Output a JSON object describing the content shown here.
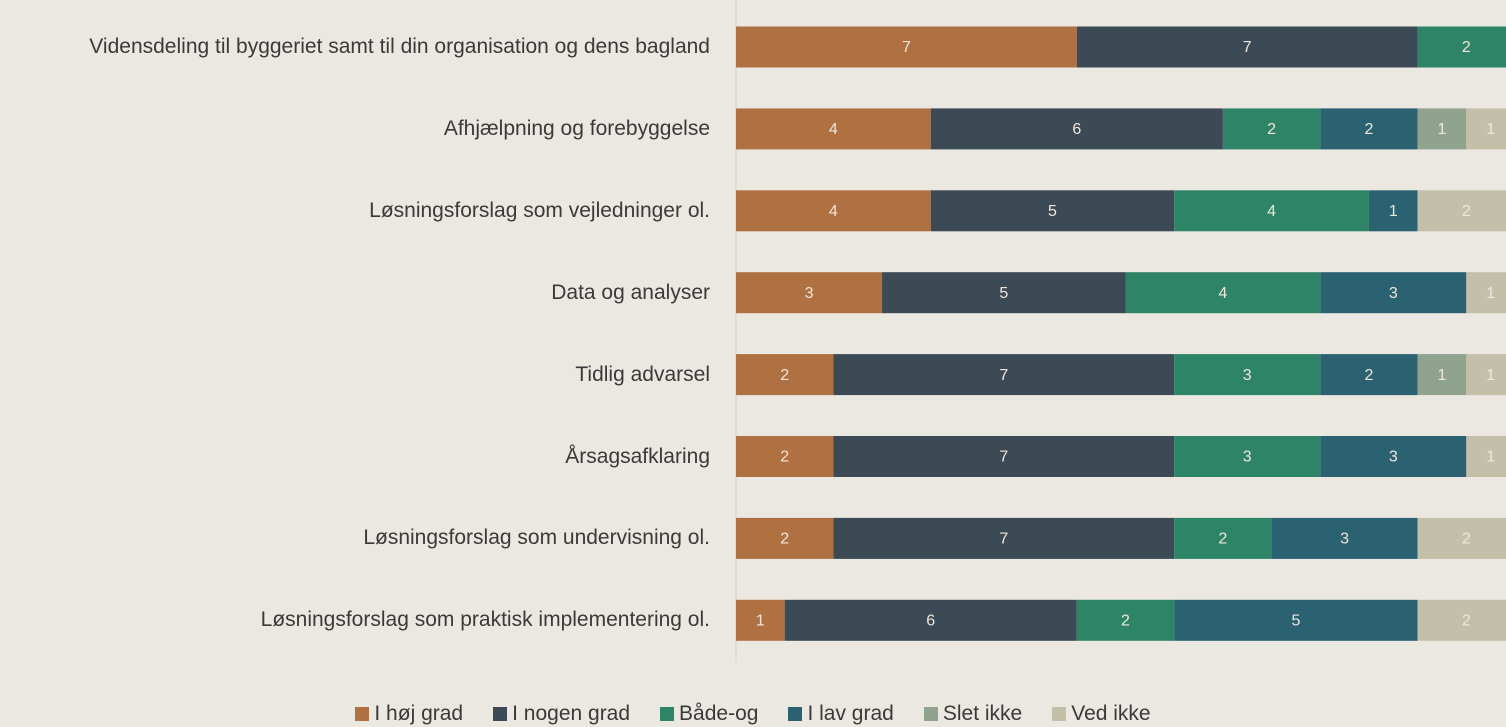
{
  "chart_data": {
    "type": "stacked-barh",
    "categories": [
      "Vidensdeling til byggeriet samt til din organisation og dens bagland",
      "Afhjælpning og forebyggelse",
      "Løsningsforslag som vejledninger ol.",
      "Data og analyser",
      "Tidlig advarsel",
      "Årsagsafklaring",
      "Løsningsforslag som undervisning ol.",
      "Løsningsforslag som praktisk implementering ol."
    ],
    "series": [
      {
        "name": "I høj grad",
        "color": "#b07142",
        "values": [
          7,
          4,
          4,
          3,
          2,
          2,
          2,
          1
        ]
      },
      {
        "name": "I nogen grad",
        "color": "#3b4a55",
        "values": [
          7,
          6,
          5,
          5,
          7,
          7,
          7,
          6
        ]
      },
      {
        "name": "Både-og",
        "color": "#2e8466",
        "values": [
          2,
          2,
          4,
          4,
          3,
          3,
          2,
          2
        ]
      },
      {
        "name": "I lav grad",
        "color": "#2a6272",
        "values": [
          null,
          2,
          1,
          3,
          2,
          3,
          3,
          5
        ]
      },
      {
        "name": "Slet ikke",
        "color": "#8fa38f",
        "values": [
          null,
          1,
          null,
          null,
          1,
          null,
          null,
          null
        ]
      },
      {
        "name": "Ved ikke",
        "color": "#c3bfa9",
        "values": [
          null,
          1,
          2,
          1,
          1,
          1,
          2,
          2
        ]
      }
    ],
    "xlim": [
      0,
      16
    ],
    "legend": "bottom"
  }
}
